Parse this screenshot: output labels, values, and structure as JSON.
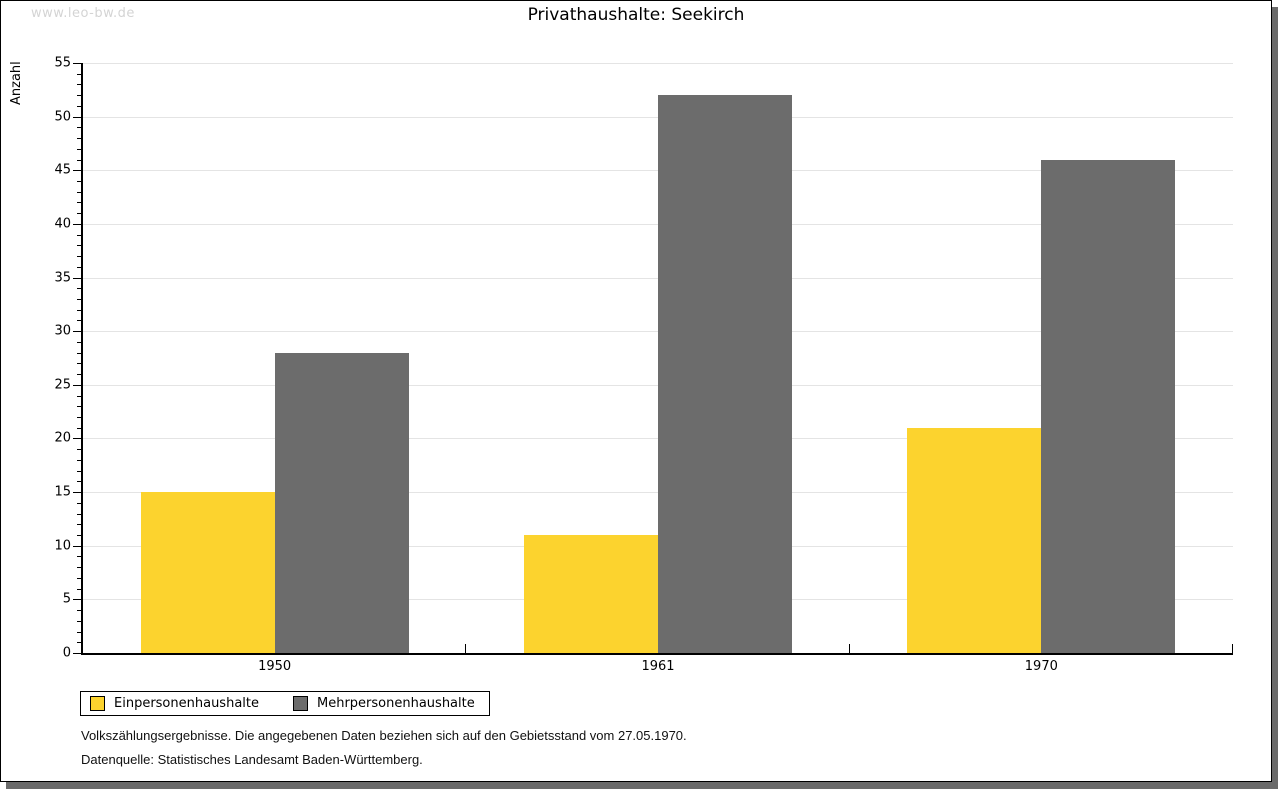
{
  "watermark": "www.leo-bw.de",
  "chart_data": {
    "type": "bar",
    "title": "Privathaushalte: Seekirch",
    "ylabel": "Anzahl",
    "xlabel": "",
    "categories": [
      "1950",
      "1961",
      "1970"
    ],
    "series": [
      {
        "name": "Einpersonenhaushalte",
        "color": "#fcd32e",
        "values": [
          15,
          11,
          21
        ]
      },
      {
        "name": "Mehrpersonenhaushalte",
        "color": "#6c6c6c",
        "values": [
          28,
          52,
          46
        ]
      }
    ],
    "ylim": [
      0,
      55
    ],
    "y_major_step": 5,
    "y_minor_step": 1,
    "grid": true,
    "legend_position": "bottom-left"
  },
  "footnotes": [
    "Volkszählungsergebnisse. Die angegebenen Daten beziehen sich auf den Gebietsstand vom 27.05.1970.",
    "Datenquelle: Statistisches Landesamt Baden-Württemberg."
  ]
}
